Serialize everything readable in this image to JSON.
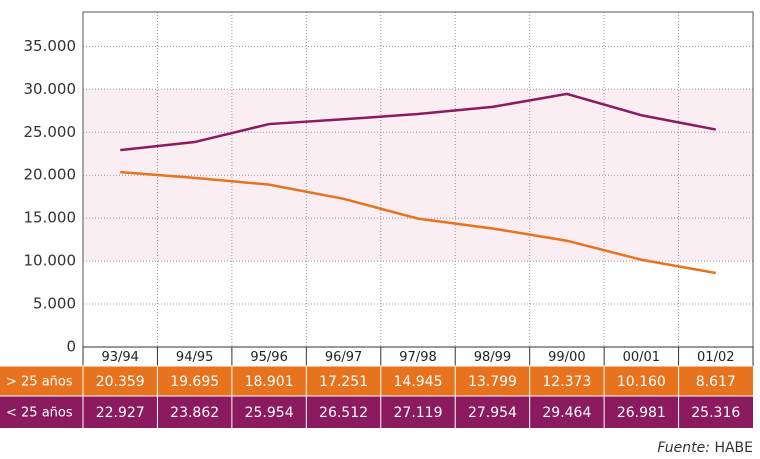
{
  "chart_data": {
    "type": "line",
    "categories": [
      "93/94",
      "94/95",
      "95/96",
      "96/97",
      "97/98",
      "98/99",
      "99/00",
      "00/01",
      "01/02"
    ],
    "series": [
      {
        "name": "> 25 años",
        "color": "#e8731e",
        "values": [
          20359,
          19695,
          18901,
          17251,
          14945,
          13799,
          12373,
          10160,
          8617
        ],
        "value_labels": [
          "20.359",
          "19.695",
          "18.901",
          "17.251",
          "14.945",
          "13.799",
          "12.373",
          "10.160",
          "8.617"
        ]
      },
      {
        "name": "< 25 años",
        "color": "#8c1a5f",
        "values": [
          22927,
          23862,
          25954,
          26512,
          27119,
          27954,
          29464,
          26981,
          25316
        ],
        "value_labels": [
          "22.927",
          "23.862",
          "25.954",
          "26.512",
          "27.119",
          "27.954",
          "29.464",
          "26.981",
          "25.316"
        ]
      }
    ],
    "ylim": [
      0,
      39000
    ],
    "yticks": [
      0,
      {
        "value": 5000,
        "label": "5.000"
      },
      {
        "value": 10000,
        "label": "10.000"
      },
      {
        "value": 15000,
        "label": "15.000"
      },
      {
        "value": 20000,
        "label": "20.000"
      },
      {
        "value": 25000,
        "label": "25.000"
      },
      {
        "value": 30000,
        "label": "30.000"
      },
      {
        "value": 35000,
        "label": "35.000"
      }
    ],
    "grid": true,
    "source_label": "Fuente:",
    "source": "HABE"
  }
}
